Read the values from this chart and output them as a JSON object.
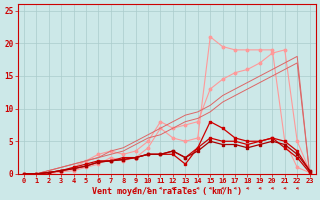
{
  "x": [
    0,
    1,
    2,
    3,
    4,
    5,
    6,
    7,
    8,
    9,
    10,
    11,
    12,
    13,
    14,
    15,
    16,
    17,
    18,
    19,
    20,
    21,
    22,
    23
  ],
  "line_light1": [
    0,
    0,
    0,
    0.3,
    0.5,
    1,
    1.5,
    2.5,
    2,
    2.5,
    4,
    7,
    5.5,
    5,
    5.5,
    21,
    19.5,
    19,
    19,
    19,
    19,
    5,
    1,
    0.2
  ],
  "line_light2": [
    0,
    0,
    0.2,
    0.5,
    1,
    2,
    3,
    3.5,
    3,
    3.5,
    5,
    8,
    7,
    7.5,
    8,
    13,
    14.5,
    15.5,
    16,
    17,
    18.5,
    19,
    5,
    0.5
  ],
  "line_diag1": [
    0,
    0,
    0.5,
    1,
    1.5,
    2,
    2.5,
    3.5,
    4,
    5,
    6,
    7,
    8,
    9,
    9.5,
    10.5,
    12,
    13,
    14,
    15,
    16,
    17,
    18,
    0
  ],
  "line_diag2": [
    0,
    0,
    0.5,
    1,
    1.5,
    2,
    2.5,
    3,
    3.5,
    4.5,
    5.5,
    6,
    7,
    8,
    8.5,
    9.5,
    11,
    12,
    13,
    14,
    15,
    16,
    17,
    0
  ],
  "line_dark1": [
    0,
    0,
    0.2,
    0.5,
    1,
    1.5,
    2,
    2,
    2.5,
    2.5,
    3,
    3,
    3,
    1.5,
    4,
    8,
    7,
    5.5,
    5,
    5,
    5.5,
    4,
    2.5,
    0.2
  ],
  "line_dark2": [
    0,
    0,
    0.2,
    0.5,
    0.8,
    1.2,
    1.8,
    2,
    2.2,
    2.5,
    3,
    3,
    3.5,
    2.5,
    4,
    5.5,
    5,
    5,
    4.5,
    5,
    5.5,
    5,
    3.5,
    0.5
  ],
  "line_dark3": [
    0,
    0,
    0.2,
    0.5,
    0.8,
    1.2,
    1.8,
    2,
    2.2,
    2.5,
    3,
    3,
    3.5,
    2.5,
    3.5,
    5,
    4.5,
    4.5,
    4,
    4.5,
    5,
    4.5,
    3,
    0.5
  ],
  "background": "#cce8e8",
  "grid_color": "#aacccc",
  "line_color_dark_red": "#cc0000",
  "line_color_dark2": "#aa0000",
  "line_color_light": "#ff9999",
  "line_color_diag": "#dd6666",
  "xlabel": "Vent moyen/en rafales ( km/h )",
  "xlabel_color": "#cc0000",
  "tick_color": "#cc0000",
  "ylim": [
    0,
    26
  ],
  "xlim": [
    -0.5,
    23.5
  ],
  "yticks": [
    0,
    5,
    10,
    15,
    20,
    25
  ],
  "xticks": [
    0,
    1,
    2,
    3,
    4,
    5,
    6,
    7,
    8,
    9,
    10,
    11,
    12,
    13,
    14,
    15,
    16,
    17,
    18,
    19,
    20,
    21,
    22,
    23
  ]
}
